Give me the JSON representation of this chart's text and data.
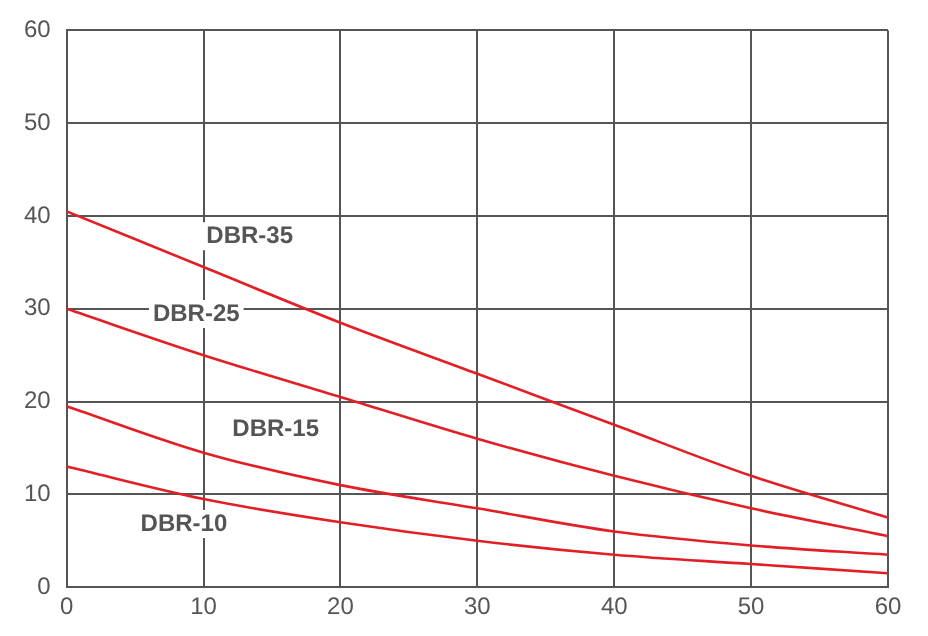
{
  "chart_data": {
    "type": "line",
    "x": [
      0,
      10,
      20,
      30,
      40,
      50,
      60
    ],
    "series": [
      {
        "name": "DBR-10",
        "color": "#e31f26",
        "values": [
          13,
          9.5,
          7,
          5,
          3.5,
          2.5,
          1.5
        ]
      },
      {
        "name": "DBR-15",
        "color": "#e31f26",
        "values": [
          19.5,
          14.5,
          11,
          8.5,
          6,
          4.5,
          3.5
        ]
      },
      {
        "name": "DBR-25",
        "color": "#e31f26",
        "values": [
          30,
          25,
          20.5,
          16,
          12,
          8.5,
          5.5
        ]
      },
      {
        "name": "DBR-35",
        "color": "#e31f26",
        "values": [
          40.5,
          34.5,
          28.5,
          23,
          17.5,
          12,
          7.5
        ]
      }
    ],
    "xlim": [
      0,
      60
    ],
    "xticks": [
      0,
      10,
      20,
      30,
      40,
      50,
      60
    ],
    "ylim": [
      0,
      60
    ],
    "yticks": [
      0,
      10,
      20,
      30,
      40,
      50,
      60
    ],
    "grid": true,
    "legend": false,
    "marker": "none",
    "line_style": "solid"
  }
}
